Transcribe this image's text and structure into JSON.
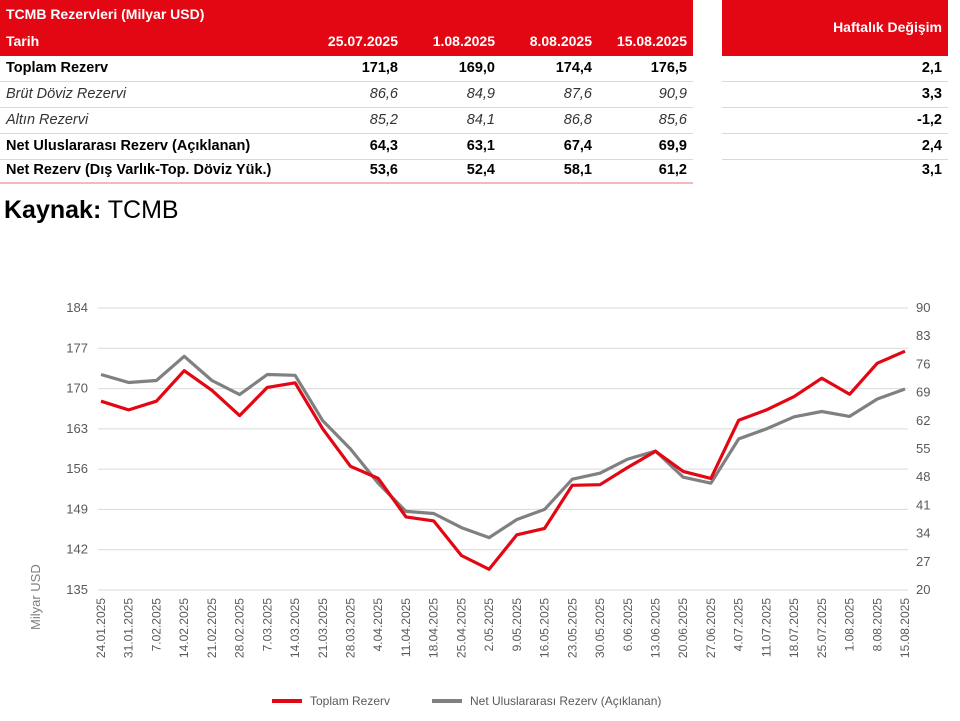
{
  "table": {
    "title": "TCMB Rezervleri (Milyar USD)",
    "header_label": "Tarih",
    "dates": [
      "25.07.2025",
      "1.08.2025",
      "8.08.2025",
      "15.08.2025"
    ],
    "change_header": "Haftalık Değişim",
    "rows": [
      {
        "label": "Toplam Rezerv",
        "values": [
          "171,8",
          "169,0",
          "174,4",
          "176,5"
        ],
        "change": "2,1",
        "style": "bold"
      },
      {
        "label": "Brüt Döviz Rezervi",
        "values": [
          "86,6",
          "84,9",
          "87,6",
          "90,9"
        ],
        "change": "3,3",
        "style": "italic"
      },
      {
        "label": "Altın Rezervi",
        "values": [
          "85,2",
          "84,1",
          "86,8",
          "85,6"
        ],
        "change": "-1,2",
        "style": "italic"
      },
      {
        "label": "Net Uluslararası Rezerv (Açıklanan)",
        "values": [
          "64,3",
          "63,1",
          "67,4",
          "69,9"
        ],
        "change": "2,4",
        "style": "bold"
      },
      {
        "label": "Net Rezerv (Dış Varlık-Top. Döviz Yük.)",
        "values": [
          "53,6",
          "52,4",
          "58,1",
          "61,2"
        ],
        "change": "3,1",
        "style": "bold"
      }
    ],
    "header_color": "#e30613"
  },
  "source": {
    "label": "Kaynak:",
    "value": "TCMB"
  },
  "chart_data": {
    "type": "line",
    "ylabel": "Milyar USD",
    "y_left": {
      "ticks": [
        135,
        142,
        149,
        156,
        163,
        170,
        177,
        184
      ],
      "range": [
        135,
        184
      ]
    },
    "y_right": {
      "ticks": [
        20,
        27,
        34,
        41,
        48,
        55,
        62,
        69,
        76,
        83,
        90
      ],
      "range": [
        20,
        90
      ]
    },
    "x": [
      "24.01.2025",
      "31.01.2025",
      "7.02.2025",
      "14.02.2025",
      "21.02.2025",
      "28.02.2025",
      "7.03.2025",
      "14.03.2025",
      "21.03.2025",
      "28.03.2025",
      "4.04.2025",
      "11.04.2025",
      "18.04.2025",
      "25.04.2025",
      "2.05.2025",
      "9.05.2025",
      "16.05.2025",
      "23.05.2025",
      "30.05.2025",
      "6.06.2025",
      "13.06.2025",
      "20.06.2025",
      "27.06.2025",
      "4.07.2025",
      "11.07.2025",
      "18.07.2025",
      "25.07.2025",
      "1.08.2025",
      "8.08.2025",
      "15.08.2025"
    ],
    "grid": "horizontal",
    "legend_position": "bottom",
    "series": [
      {
        "name": "Toplam Rezerv",
        "axis": "left",
        "color": "#e30613",
        "values": [
          167.8,
          166.3,
          167.8,
          173.1,
          169.7,
          165.3,
          170.2,
          171.0,
          163.0,
          156.5,
          154.4,
          147.7,
          147.0,
          141.0,
          138.6,
          144.6,
          145.7,
          153.2,
          153.3,
          156.3,
          159.1,
          155.6,
          154.4,
          164.5,
          166.3,
          168.6,
          171.8,
          169.0,
          174.4,
          176.5
        ]
      },
      {
        "name": "Net Uluslararası Rezerv (Açıklanan)",
        "axis": "right",
        "color": "#808080",
        "values": [
          73.5,
          71.5,
          72.0,
          78.0,
          72.0,
          68.5,
          73.5,
          73.3,
          62.0,
          55.0,
          46.5,
          39.5,
          39.0,
          35.5,
          33.0,
          37.5,
          40.0,
          47.5,
          49.0,
          52.5,
          54.5,
          48.0,
          46.5,
          57.5,
          60.0,
          63.0,
          64.3,
          63.1,
          67.4,
          69.9
        ]
      }
    ]
  }
}
